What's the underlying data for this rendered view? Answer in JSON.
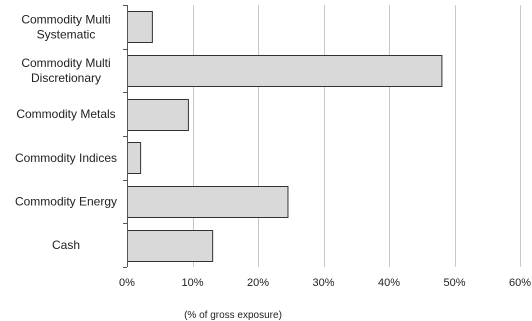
{
  "chart_data": {
    "type": "bar",
    "orientation": "horizontal",
    "categories": [
      [
        "Commodity Multi",
        "Systematic"
      ],
      [
        "Commodity Multi",
        "Discretionary"
      ],
      [
        "Commodity Metals"
      ],
      [
        "Commodity Indices"
      ],
      [
        "Commodity Energy"
      ],
      [
        "Cash"
      ]
    ],
    "values": [
      3.8,
      48.0,
      9.3,
      2.0,
      24.5,
      13.0
    ],
    "xlim": [
      0,
      60
    ],
    "xticks": [
      0,
      10,
      20,
      30,
      40,
      50,
      60
    ],
    "xtick_labels": [
      "0%",
      "10%",
      "20%",
      "30%",
      "40%",
      "50%",
      "60%"
    ],
    "xlabel": "(% of gross exposure)",
    "grid": true,
    "colors": {
      "bar_fill": "#d9d9d9",
      "bar_stroke": "#333333",
      "grid": "#c8c8c8"
    }
  }
}
